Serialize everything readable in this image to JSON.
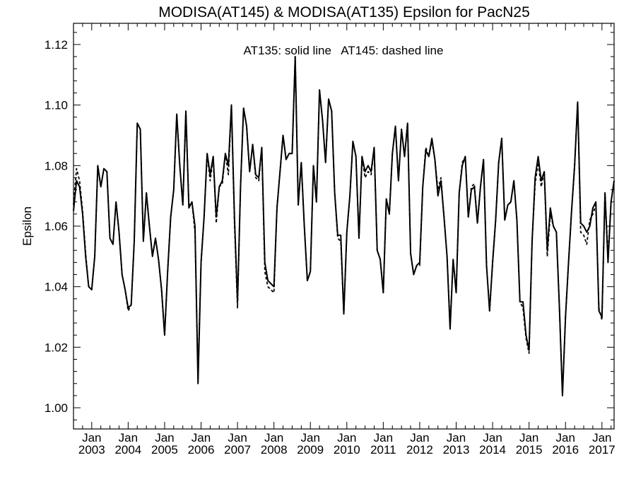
{
  "chart_data": {
    "type": "line",
    "title": "MODISA(AT145) & MODISA(AT135)  Epsilon for PacN25",
    "xlabel": "",
    "ylabel": "Epsilon",
    "annotation": "AT135: solid line   AT145: dashed line",
    "ylim": [
      0.993,
      1.127
    ],
    "xlim": [
      "2002-07",
      "2017-05"
    ],
    "yticks": [
      1.0,
      1.02,
      1.04,
      1.06,
      1.08,
      1.1,
      1.12
    ],
    "ytick_labels": [
      "1.00",
      "1.02",
      "1.04",
      "1.06",
      "1.08",
      "1.10",
      "1.12"
    ],
    "xtick_labels": [
      {
        "month": "Jan",
        "year": "2003"
      },
      {
        "month": "Jan",
        "year": "2004"
      },
      {
        "month": "Jan",
        "year": "2005"
      },
      {
        "month": "Jan",
        "year": "2006"
      },
      {
        "month": "Jan",
        "year": "2007"
      },
      {
        "month": "Jan",
        "year": "2008"
      },
      {
        "month": "Jan",
        "year": "2009"
      },
      {
        "month": "Jan",
        "year": "2010"
      },
      {
        "month": "Jan",
        "year": "2011"
      },
      {
        "month": "Jan",
        "year": "2012"
      },
      {
        "month": "Jan",
        "year": "2013"
      },
      {
        "month": "Jan",
        "year": "2014"
      },
      {
        "month": "Jan",
        "year": "2015"
      },
      {
        "month": "Jan",
        "year": "2016"
      },
      {
        "month": "Jan",
        "year": "2017"
      }
    ],
    "grid": false,
    "x": [
      "2002-07",
      "2002-08",
      "2002-09",
      "2002-10",
      "2002-11",
      "2002-12",
      "2003-01",
      "2003-02",
      "2003-03",
      "2003-04",
      "2003-05",
      "2003-06",
      "2003-07",
      "2003-08",
      "2003-09",
      "2003-10",
      "2003-11",
      "2003-12",
      "2004-01",
      "2004-02",
      "2004-03",
      "2004-04",
      "2004-05",
      "2004-06",
      "2004-07",
      "2004-08",
      "2004-09",
      "2004-10",
      "2004-11",
      "2004-12",
      "2005-01",
      "2005-02",
      "2005-03",
      "2005-04",
      "2005-05",
      "2005-06",
      "2005-07",
      "2005-08",
      "2005-09",
      "2005-10",
      "2005-11",
      "2005-12",
      "2006-01",
      "2006-02",
      "2006-03",
      "2006-04",
      "2006-05",
      "2006-06",
      "2006-07",
      "2006-08",
      "2006-09",
      "2006-10",
      "2006-11",
      "2006-12",
      "2007-01",
      "2007-02",
      "2007-03",
      "2007-04",
      "2007-05",
      "2007-06",
      "2007-07",
      "2007-08",
      "2007-09",
      "2007-10",
      "2007-11",
      "2007-12",
      "2008-01",
      "2008-02",
      "2008-03",
      "2008-04",
      "2008-05",
      "2008-06",
      "2008-07",
      "2008-08",
      "2008-09",
      "2008-10",
      "2008-11",
      "2008-12",
      "2009-01",
      "2009-02",
      "2009-03",
      "2009-04",
      "2009-05",
      "2009-06",
      "2009-07",
      "2009-08",
      "2009-09",
      "2009-10",
      "2009-11",
      "2009-12",
      "2010-01",
      "2010-02",
      "2010-03",
      "2010-04",
      "2010-05",
      "2010-06",
      "2010-07",
      "2010-08",
      "2010-09",
      "2010-10",
      "2010-11",
      "2010-12",
      "2011-01",
      "2011-02",
      "2011-03",
      "2011-04",
      "2011-05",
      "2011-06",
      "2011-07",
      "2011-08",
      "2011-09",
      "2011-10",
      "2011-11",
      "2011-12",
      "2012-01",
      "2012-02",
      "2012-03",
      "2012-04",
      "2012-05",
      "2012-06",
      "2012-07",
      "2012-08",
      "2012-09",
      "2012-10",
      "2012-11",
      "2012-12",
      "2013-01",
      "2013-02",
      "2013-03",
      "2013-04",
      "2013-05",
      "2013-06",
      "2013-07",
      "2013-08",
      "2013-09",
      "2013-10",
      "2013-11",
      "2013-12",
      "2014-01",
      "2014-02",
      "2014-03",
      "2014-04",
      "2014-05",
      "2014-06",
      "2014-07",
      "2014-08",
      "2014-09",
      "2014-10",
      "2014-11",
      "2014-12",
      "2015-01",
      "2015-02",
      "2015-03",
      "2015-04",
      "2015-05",
      "2015-06",
      "2015-07",
      "2015-08",
      "2015-09",
      "2015-10",
      "2015-11",
      "2015-12",
      "2016-01",
      "2016-02",
      "2016-03",
      "2016-04",
      "2016-05",
      "2016-06",
      "2016-07",
      "2016-08",
      "2016-09",
      "2016-10",
      "2016-11",
      "2016-12",
      "2017-01",
      "2017-02",
      "2017-03",
      "2017-04",
      "2017-05"
    ],
    "series": [
      {
        "name": "AT135",
        "style": "solid",
        "color": "#000000",
        "values": [
          1.065,
          1.075,
          1.073,
          1.064,
          1.05,
          1.04,
          1.039,
          1.05,
          1.08,
          1.073,
          1.079,
          1.078,
          1.056,
          1.054,
          1.068,
          1.058,
          1.044,
          1.039,
          1.033,
          1.034,
          1.055,
          1.094,
          1.092,
          1.055,
          1.071,
          1.06,
          1.05,
          1.056,
          1.049,
          1.039,
          1.024,
          1.045,
          1.063,
          1.072,
          1.097,
          1.08,
          1.067,
          1.098,
          1.066,
          1.068,
          1.06,
          1.008,
          1.048,
          1.063,
          1.084,
          1.077,
          1.083,
          1.063,
          1.073,
          1.075,
          1.084,
          1.08,
          1.1,
          1.063,
          1.035,
          1.073,
          1.099,
          1.093,
          1.078,
          1.087,
          1.077,
          1.076,
          1.086,
          1.048,
          1.042,
          1.041,
          1.04,
          1.066,
          1.078,
          1.09,
          1.082,
          1.084,
          1.084,
          1.116,
          1.067,
          1.081,
          1.06,
          1.042,
          1.045,
          1.08,
          1.068,
          1.105,
          1.095,
          1.081,
          1.102,
          1.098,
          1.071,
          1.057,
          1.057,
          1.031,
          1.058,
          1.07,
          1.088,
          1.083,
          1.056,
          1.083,
          1.078,
          1.08,
          1.078,
          1.086,
          1.052,
          1.049,
          1.038,
          1.069,
          1.064,
          1.084,
          1.093,
          1.075,
          1.092,
          1.083,
          1.094,
          1.051,
          1.044,
          1.047,
          1.048,
          1.073,
          1.085,
          1.083,
          1.089,
          1.082,
          1.07,
          1.075,
          1.063,
          1.05,
          1.026,
          1.049,
          1.038,
          1.071,
          1.08,
          1.083,
          1.063,
          1.072,
          1.073,
          1.061,
          1.073,
          1.082,
          1.047,
          1.032,
          1.048,
          1.062,
          1.081,
          1.089,
          1.062,
          1.067,
          1.068,
          1.075,
          1.062,
          1.035,
          1.035,
          1.024,
          1.019,
          1.055,
          1.076,
          1.083,
          1.075,
          1.078,
          1.052,
          1.066,
          1.06,
          1.058,
          1.033,
          1.004,
          1.03,
          1.048,
          1.065,
          1.08,
          1.101,
          1.061,
          1.06,
          1.058,
          1.06,
          1.066,
          1.068,
          1.032,
          1.03,
          1.071,
          1.048,
          1.068,
          1.075
        ]
      },
      {
        "name": "AT145",
        "style": "dashed",
        "color": "#000000",
        "values": [
          1.067,
          1.079,
          1.075,
          1.065,
          1.051,
          1.04,
          1.039,
          1.05,
          1.08,
          1.073,
          1.079,
          1.078,
          1.056,
          1.054,
          1.068,
          1.058,
          1.044,
          1.039,
          1.032,
          1.034,
          1.055,
          1.094,
          1.092,
          1.055,
          1.071,
          1.06,
          1.05,
          1.056,
          1.049,
          1.039,
          1.024,
          1.045,
          1.063,
          1.072,
          1.097,
          1.08,
          1.067,
          1.098,
          1.067,
          1.068,
          1.058,
          1.011,
          1.048,
          1.063,
          1.084,
          1.075,
          1.083,
          1.061,
          1.073,
          1.074,
          1.084,
          1.077,
          1.1,
          1.061,
          1.033,
          1.073,
          1.099,
          1.093,
          1.078,
          1.087,
          1.076,
          1.075,
          1.086,
          1.045,
          1.04,
          1.039,
          1.038,
          1.066,
          1.078,
          1.09,
          1.082,
          1.084,
          1.084,
          1.116,
          1.067,
          1.081,
          1.06,
          1.042,
          1.045,
          1.08,
          1.068,
          1.105,
          1.095,
          1.081,
          1.102,
          1.098,
          1.071,
          1.056,
          1.055,
          1.031,
          1.058,
          1.07,
          1.088,
          1.083,
          1.056,
          1.083,
          1.076,
          1.078,
          1.077,
          1.086,
          1.052,
          1.049,
          1.038,
          1.069,
          1.064,
          1.084,
          1.093,
          1.075,
          1.092,
          1.083,
          1.094,
          1.051,
          1.044,
          1.047,
          1.047,
          1.073,
          1.086,
          1.083,
          1.088,
          1.082,
          1.072,
          1.076,
          1.063,
          1.05,
          1.027,
          1.049,
          1.038,
          1.071,
          1.081,
          1.083,
          1.063,
          1.073,
          1.074,
          1.061,
          1.073,
          1.082,
          1.047,
          1.032,
          1.048,
          1.062,
          1.081,
          1.089,
          1.062,
          1.067,
          1.068,
          1.075,
          1.062,
          1.035,
          1.033,
          1.023,
          1.018,
          1.055,
          1.074,
          1.081,
          1.073,
          1.078,
          1.05,
          1.064,
          1.06,
          1.058,
          1.033,
          1.004,
          1.03,
          1.048,
          1.065,
          1.08,
          1.101,
          1.058,
          1.057,
          1.054,
          1.062,
          1.064,
          1.067,
          1.033,
          1.029,
          1.071,
          1.05,
          1.068,
          1.075
        ]
      }
    ]
  }
}
